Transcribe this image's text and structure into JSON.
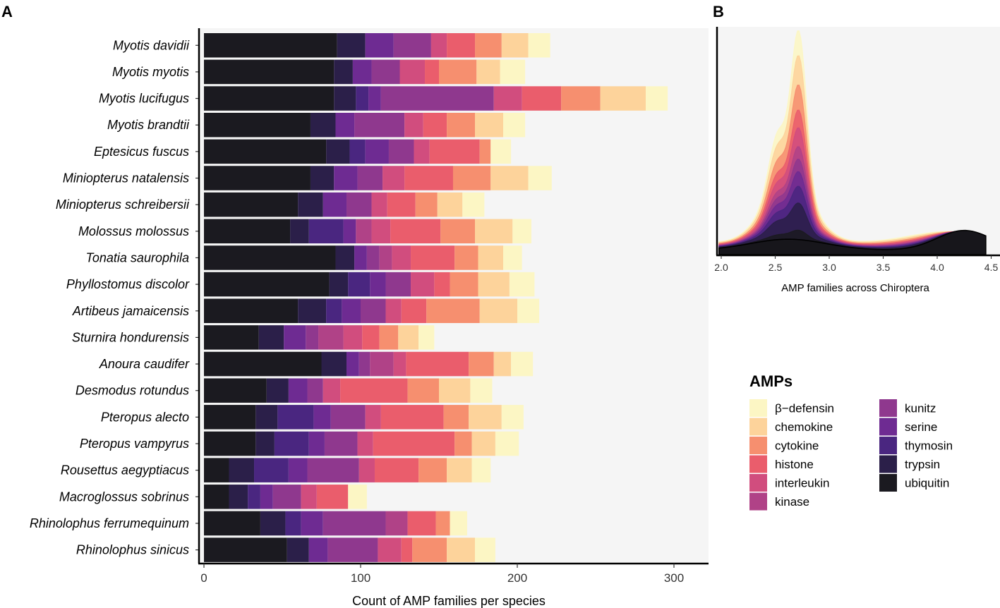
{
  "chart_data": [
    {
      "panel": "A",
      "type": "bar",
      "orientation": "horizontal",
      "stacked": true,
      "xlabel": "Count of AMP families per species",
      "xlim": [
        0,
        325
      ],
      "xticks": [
        0,
        100,
        200,
        300
      ],
      "stack_order": [
        "ubiquitin",
        "trypsin",
        "thymosin",
        "serine",
        "kunitz",
        "kinase",
        "interleukin",
        "histone",
        "cytokine",
        "chemokine",
        "β−defensin"
      ],
      "categories": [
        "Myotis davidii",
        "Myotis myotis",
        "Myotis lucifugus",
        "Myotis brandtii",
        "Eptesicus fuscus",
        "Miniopterus natalensis",
        "Miniopterus schreibersii",
        "Molossus molossus",
        "Tonatia saurophila",
        "Phyllostomus discolor",
        "Artibeus jamaicensis",
        "Sturnira hondurensis",
        "Anoura caudifer",
        "Desmodus rotundus",
        "Pteropus alecto",
        "Pteropus vampyrus",
        "Rousettus aegyptiacus",
        "Macroglossus sobrinus",
        "Rhinolophus ferrumequinum",
        "Rhinolophus sinicus"
      ],
      "series": [
        {
          "name": "ubiquitin",
          "values": [
            85,
            83,
            83,
            68,
            78,
            68,
            60,
            55,
            84,
            80,
            60,
            35,
            75,
            40,
            33,
            33,
            16,
            16,
            36,
            53
          ]
        },
        {
          "name": "trypsin",
          "values": [
            18,
            12,
            14,
            16,
            15,
            15,
            16,
            12,
            12,
            12,
            18,
            16,
            16,
            14,
            14,
            12,
            16,
            12,
            16,
            14
          ]
        },
        {
          "name": "thymosin",
          "values": [
            0,
            0,
            8,
            0,
            10,
            0,
            0,
            22,
            0,
            14,
            10,
            0,
            0,
            0,
            23,
            22,
            22,
            8,
            10,
            0
          ]
        },
        {
          "name": "serine",
          "values": [
            18,
            12,
            8,
            12,
            15,
            15,
            15,
            8,
            8,
            10,
            12,
            14,
            8,
            12,
            11,
            10,
            12,
            8,
            14,
            12
          ]
        },
        {
          "name": "kunitz",
          "values": [
            24,
            18,
            72,
            32,
            16,
            16,
            16,
            0,
            8,
            16,
            16,
            8,
            7,
            10,
            22,
            21,
            33,
            18,
            40,
            32
          ]
        },
        {
          "name": "kinase",
          "values": [
            0,
            0,
            0,
            0,
            0,
            0,
            0,
            10,
            8,
            0,
            0,
            16,
            15,
            0,
            0,
            0,
            0,
            0,
            14,
            0
          ]
        },
        {
          "name": "interleukin",
          "values": [
            10,
            16,
            18,
            12,
            10,
            14,
            10,
            12,
            12,
            15,
            10,
            12,
            8,
            11,
            10,
            10,
            10,
            10,
            0,
            15
          ]
        },
        {
          "name": "histone",
          "values": [
            18,
            9,
            25,
            15,
            32,
            31,
            18,
            32,
            28,
            10,
            16,
            11,
            40,
            43,
            40,
            52,
            28,
            20,
            18,
            7
          ]
        },
        {
          "name": "cytokine",
          "values": [
            17,
            24,
            25,
            18,
            7,
            24,
            14,
            22,
            15,
            18,
            34,
            12,
            16,
            20,
            16,
            11,
            18,
            0,
            9,
            22
          ]
        },
        {
          "name": "chemokine",
          "values": [
            17,
            15,
            29,
            18,
            0,
            24,
            16,
            24,
            16,
            20,
            24,
            13,
            11,
            20,
            21,
            15,
            16,
            0,
            0,
            18
          ]
        },
        {
          "name": "β−defensin",
          "values": [
            14,
            16,
            14,
            14,
            13,
            15,
            14,
            12,
            12,
            16,
            14,
            10,
            14,
            14,
            14,
            15,
            12,
            12,
            11,
            13
          ]
        }
      ]
    },
    {
      "panel": "B",
      "type": "area",
      "stacked": true,
      "xlabel": "AMP families across Chiroptera",
      "xlim": [
        1.98,
        4.55
      ],
      "xticks": [
        "2.0",
        "2.5",
        "3.0",
        "3.5",
        "4.0",
        "4.5"
      ],
      "layers": [
        "ubiquitin",
        "trypsin",
        "thymosin",
        "serine",
        "kunitz",
        "kinase",
        "interleukin",
        "histone",
        "cytokine",
        "chemokine",
        "β−defensin"
      ]
    }
  ],
  "panels": {
    "a": "A",
    "b": "B"
  },
  "legend": {
    "title": "AMPs",
    "items": [
      {
        "label": "β−defensin",
        "color": "#fcf6c4"
      },
      {
        "label": "chemokine",
        "color": "#fdd39b"
      },
      {
        "label": "cytokine",
        "color": "#f68f6f"
      },
      {
        "label": "histone",
        "color": "#ea5d6c"
      },
      {
        "label": "interleukin",
        "color": "#d14d7e"
      },
      {
        "label": "kinase",
        "color": "#b04287"
      },
      {
        "label": "kunitz",
        "color": "#8f388e"
      },
      {
        "label": "serine",
        "color": "#6e2b92"
      },
      {
        "label": "thymosin",
        "color": "#4a2680"
      },
      {
        "label": "trypsin",
        "color": "#2b1f49"
      },
      {
        "label": "ubiquitin",
        "color": "#1b1a20"
      }
    ]
  },
  "colors": {
    "panel_bg": "#f5f5f5",
    "axis": "#000000"
  }
}
